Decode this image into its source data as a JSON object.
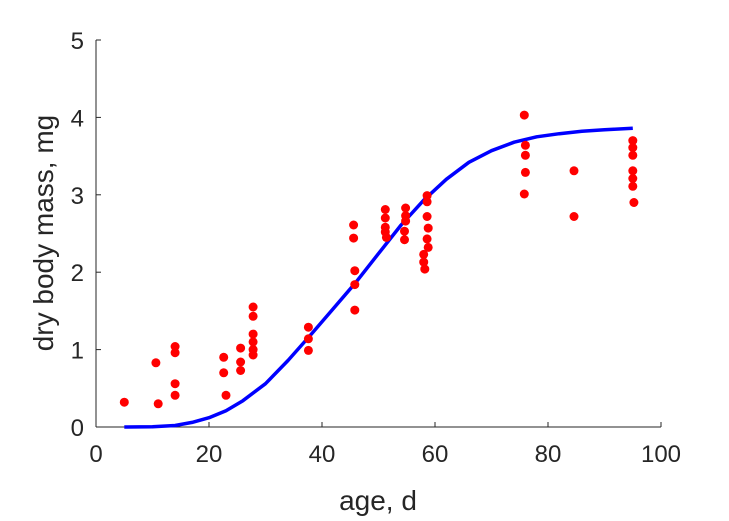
{
  "chart_data": {
    "type": "scatter",
    "title": "",
    "xlabel": "age, d",
    "ylabel": "dry body mass, mg",
    "xlim": [
      0,
      100
    ],
    "ylim": [
      0,
      5
    ],
    "xticks": [
      "0",
      "20",
      "40",
      "60",
      "80",
      "100"
    ],
    "yticks": [
      "0",
      "1",
      "2",
      "3",
      "4",
      "5"
    ],
    "grid": false,
    "legend": "none",
    "series": [
      {
        "type": "scatter",
        "color": "#ff0000",
        "points": [
          [
            5,
            0.32
          ],
          [
            10.6,
            0.83
          ],
          [
            11,
            0.3
          ],
          [
            14,
            1.04
          ],
          [
            14,
            0.96
          ],
          [
            14,
            0.56
          ],
          [
            14,
            0.41
          ],
          [
            22.6,
            0.9
          ],
          [
            22.6,
            0.7
          ],
          [
            23,
            0.41
          ],
          [
            25.6,
            1.02
          ],
          [
            25.6,
            0.84
          ],
          [
            25.6,
            0.73
          ],
          [
            27.8,
            1.55
          ],
          [
            27.8,
            1.43
          ],
          [
            27.8,
            1.2
          ],
          [
            27.8,
            1.1
          ],
          [
            27.8,
            1.0
          ],
          [
            27.8,
            0.93
          ],
          [
            37.6,
            1.29
          ],
          [
            37.6,
            1.14
          ],
          [
            37.6,
            0.99
          ],
          [
            45.6,
            2.61
          ],
          [
            45.6,
            2.44
          ],
          [
            45.8,
            2.02
          ],
          [
            45.8,
            1.84
          ],
          [
            45.8,
            1.51
          ],
          [
            51.2,
            2.81
          ],
          [
            51.2,
            2.7
          ],
          [
            51.2,
            2.58
          ],
          [
            51.2,
            2.52
          ],
          [
            51.4,
            2.45
          ],
          [
            54.8,
            2.83
          ],
          [
            54.8,
            2.73
          ],
          [
            54.8,
            2.66
          ],
          [
            54.6,
            2.53
          ],
          [
            54.6,
            2.42
          ],
          [
            58,
            2.23
          ],
          [
            58,
            2.13
          ],
          [
            58.2,
            2.04
          ],
          [
            58.6,
            2.99
          ],
          [
            58.6,
            2.91
          ],
          [
            58.6,
            2.72
          ],
          [
            58.6,
            2.43
          ],
          [
            58.8,
            2.32
          ],
          [
            58.8,
            2.57
          ],
          [
            75.8,
            4.03
          ],
          [
            76,
            3.64
          ],
          [
            76,
            3.51
          ],
          [
            76,
            3.29
          ],
          [
            75.8,
            3.01
          ],
          [
            84.6,
            3.31
          ],
          [
            84.6,
            2.72
          ],
          [
            95,
            3.7
          ],
          [
            95,
            3.61
          ],
          [
            95,
            3.51
          ],
          [
            95,
            3.31
          ],
          [
            95,
            3.21
          ],
          [
            95,
            3.11
          ],
          [
            95.2,
            2.9
          ]
        ]
      },
      {
        "type": "line",
        "color": "#0000ff",
        "points": [
          [
            5,
            0.0
          ],
          [
            10,
            0.002
          ],
          [
            14,
            0.02
          ],
          [
            17,
            0.06
          ],
          [
            20,
            0.12
          ],
          [
            23,
            0.21
          ],
          [
            26,
            0.34
          ],
          [
            30,
            0.56
          ],
          [
            34,
            0.86
          ],
          [
            38,
            1.19
          ],
          [
            42,
            1.53
          ],
          [
            46,
            1.87
          ],
          [
            50,
            2.24
          ],
          [
            54,
            2.61
          ],
          [
            58,
            2.93
          ],
          [
            62,
            3.2
          ],
          [
            66,
            3.42
          ],
          [
            70,
            3.57
          ],
          [
            74,
            3.68
          ],
          [
            78,
            3.75
          ],
          [
            82,
            3.79
          ],
          [
            86,
            3.82
          ],
          [
            90,
            3.84
          ],
          [
            95,
            3.86
          ]
        ]
      }
    ]
  }
}
